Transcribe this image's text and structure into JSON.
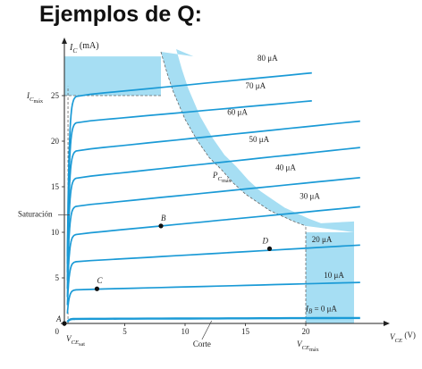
{
  "page_title": "Ejemplos de Q:",
  "chart_data": {
    "type": "line",
    "title": "Ejemplos de Q:",
    "xlabel": {
      "main": "V",
      "sub": "CE",
      "unit": " (V)"
    },
    "ylabel": {
      "main": "I",
      "sub": "C",
      "unit": " (mA)"
    },
    "xlim": [
      0,
      25
    ],
    "ylim": [
      0,
      30
    ],
    "x_ticks": [
      0,
      5,
      10,
      15,
      20
    ],
    "y_ticks": [
      5,
      10,
      15,
      20,
      25
    ],
    "x_tick_labels": [
      "0",
      "5",
      "10",
      "15",
      "20"
    ],
    "y_tick_labels": [
      "5",
      "10",
      "15",
      "20",
      "25"
    ],
    "origin_label": "0",
    "colors": {
      "curve": "#1a9ad6",
      "region": "#a6def3",
      "text": "#222222",
      "point": "#111111"
    },
    "limits": {
      "ic_max": 25,
      "vce_max": 20,
      "vce_sat": 0.3,
      "pc_max_curve": [
        [
          8,
          29.8
        ],
        [
          8.5,
          27.5
        ],
        [
          9,
          25.5
        ],
        [
          10,
          22.4
        ],
        [
          11,
          20.1
        ],
        [
          12,
          18.2
        ],
        [
          13,
          16.9
        ],
        [
          14,
          15.4
        ],
        [
          15,
          14.2
        ],
        [
          16,
          13.3
        ],
        [
          17,
          12.4
        ],
        [
          18,
          11.8
        ],
        [
          19,
          11.2
        ],
        [
          20,
          10.7
        ]
      ],
      "ic_max_label": {
        "main": "I",
        "sub": "C",
        "subsub": "máx"
      },
      "vce_max_label": {
        "main": "V",
        "sub": "CE",
        "subsub": "máx"
      },
      "vce_sat_label": {
        "main": "V",
        "sub": "CE",
        "subsub": "sat"
      },
      "pc_max_label": {
        "main": "P",
        "sub": "C",
        "subsub": "máx"
      }
    },
    "series": [
      {
        "name": "80 μA",
        "sat": 25.0,
        "end": 28.0,
        "label_main": "80 μA"
      },
      {
        "name": "70 μA",
        "sat": 22.1,
        "end": 24.9,
        "label_main": "70 μA"
      },
      {
        "name": "60 μA",
        "sat": 19.0,
        "end": 22.2,
        "label_main": "60 μA"
      },
      {
        "name": "50 μA",
        "sat": 16.0,
        "end": 19.3,
        "label_main": "50 μA"
      },
      {
        "name": "40 μA",
        "sat": 12.9,
        "end": 16.0,
        "label_main": "40 μA"
      },
      {
        "name": "30 μA",
        "sat": 9.8,
        "end": 12.8,
        "label_main": "30 μA"
      },
      {
        "name": "20 μA",
        "sat": 6.8,
        "end": 8.6,
        "label_main": "20 μA"
      },
      {
        "name": "10 μA",
        "sat": 3.7,
        "end": 4.5,
        "label_main": "10 μA"
      },
      {
        "name": "I_B = 0 μA",
        "sat": 0.5,
        "end": 0.6,
        "label_main": "I",
        "label_sub": "B",
        "label_rest": " = 0 μA"
      }
    ],
    "points": [
      {
        "name": "A",
        "x": 0,
        "y": 0
      },
      {
        "name": "B",
        "x": 8,
        "y": 10.7
      },
      {
        "name": "C",
        "x": 2.7,
        "y": 3.8
      },
      {
        "name": "D",
        "x": 17,
        "y": 8.2
      }
    ],
    "annotations": {
      "saturation": "Saturación",
      "cutoff": "Corte"
    }
  }
}
